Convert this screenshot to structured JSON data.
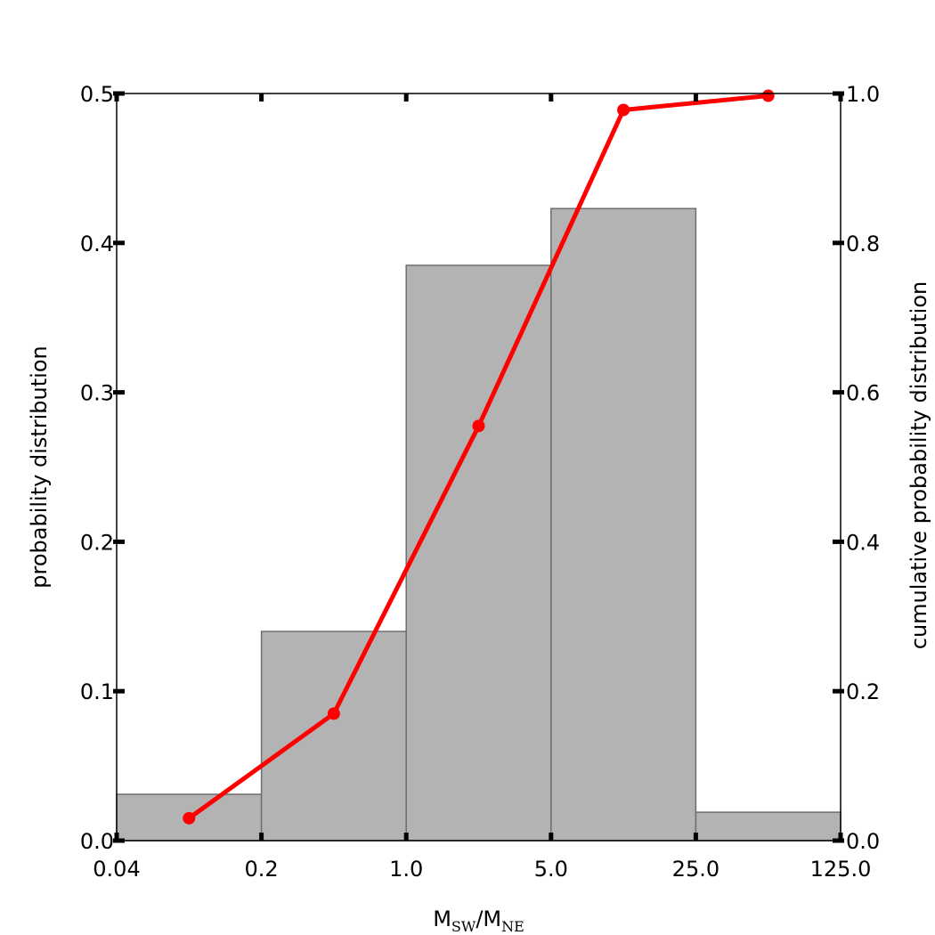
{
  "chart_data": {
    "type": "bar",
    "x_tick_labels": [
      "0.04",
      "0.2",
      "1.0",
      "5.0",
      "25.0",
      "125.0"
    ],
    "xscale": "log",
    "xlabel": {
      "main1": "M",
      "sub1": "SW",
      "slash": "/M",
      "sub2": "NE"
    },
    "ylabel": "probability distribution",
    "ylabel_right": "cumulative probability distribution",
    "ylim": [
      0,
      0.5
    ],
    "ylim_right": [
      0,
      1.0
    ],
    "y_ticks": [
      "0.0",
      "0.1",
      "0.2",
      "0.3",
      "0.4",
      "0.5"
    ],
    "y_ticks_right": [
      "0.0",
      "0.2",
      "0.4",
      "0.6",
      "0.8",
      "1.0"
    ],
    "bar_color": "#b3b3b3",
    "bar_edge_color": "#6e6e6e",
    "line_color": "#ff0000",
    "bins": [
      {
        "range": [
          "0.04",
          "0.2"
        ],
        "value": 0.031
      },
      {
        "range": [
          "0.2",
          "1.0"
        ],
        "value": 0.14
      },
      {
        "range": [
          "1.0",
          "5.0"
        ],
        "value": 0.385
      },
      {
        "range": [
          "5.0",
          "25.0"
        ],
        "value": 0.423
      },
      {
        "range": [
          "25.0",
          "125.0"
        ],
        "value": 0.019
      }
    ],
    "series": [
      {
        "values": [
          0.03,
          0.17,
          0.555,
          0.978,
          0.997
        ]
      }
    ]
  }
}
